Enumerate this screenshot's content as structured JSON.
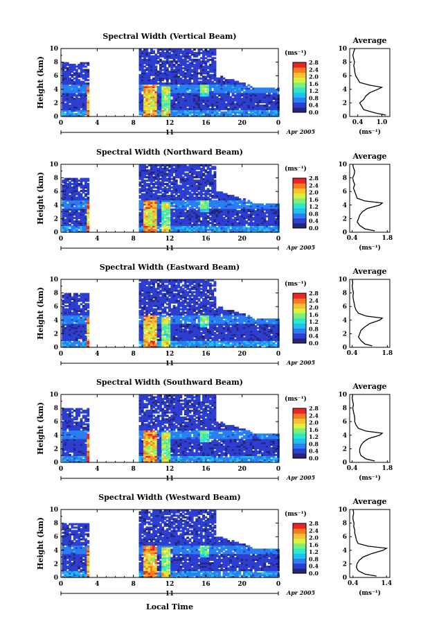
{
  "figure": {
    "xlabel": "Local Time",
    "date_label": "Apr 2005",
    "day_label": "11",
    "colorbar_unit": "(ms⁻¹)",
    "colorbar_ticks": [
      "0.0",
      "0.4",
      "0.8",
      "1.2",
      "1.6",
      "2.0",
      "2.4",
      "2.8"
    ],
    "colorbar_colors": [
      "#27257a",
      "#2c3fd1",
      "#2a7ff0",
      "#22c0f0",
      "#2ee8c8",
      "#7cf07a",
      "#d8f040",
      "#f8c030",
      "#f87a20",
      "#e8262a"
    ]
  },
  "chart_data": [
    {
      "type": "heatmap",
      "title": "Spectral Width (Vertical Beam)",
      "ylabel": "Height (km)",
      "xticks": [
        "0",
        "4",
        "8",
        "12",
        "16",
        "20",
        "0"
      ],
      "xlim": [
        0,
        24
      ],
      "yticks": [
        "0",
        "2",
        "4",
        "6",
        "8",
        "10"
      ],
      "ylim": [
        0,
        10
      ],
      "data_gap_hours": [
        3,
        8.5
      ],
      "profile": {
        "title": "Average",
        "xlabel": "(ms⁻¹)",
        "xticks": [
          "0.4",
          "1.0"
        ],
        "xlim": [
          0.2,
          1.2
        ],
        "yticks": [
          "0",
          "2",
          "4",
          "6",
          "8",
          "10"
        ],
        "heights": [
          0.2,
          0.5,
          1.0,
          1.5,
          2.0,
          2.5,
          3.0,
          3.5,
          4.0,
          4.3,
          4.6,
          5.0,
          5.5,
          6.0,
          6.5,
          7.0,
          7.5,
          8.0,
          8.5,
          9.0,
          9.5,
          10.0
        ],
        "values": [
          1.1,
          0.85,
          0.55,
          0.5,
          0.45,
          0.55,
          0.6,
          0.7,
          0.9,
          1.0,
          0.7,
          0.45,
          0.4,
          0.35,
          0.33,
          0.32,
          0.3,
          0.32,
          0.3,
          0.28,
          0.3,
          0.33
        ]
      }
    },
    {
      "type": "heatmap",
      "title": "Spectral Width (Northward Beam)",
      "ylabel": "Height (km)",
      "xticks": [
        "0",
        "4",
        "8",
        "12",
        "16",
        "20",
        "0"
      ],
      "xlim": [
        0,
        24
      ],
      "yticks": [
        "0",
        "2",
        "4",
        "6",
        "8",
        "10"
      ],
      "ylim": [
        0,
        10
      ],
      "data_gap_hours": [
        3,
        8.5
      ],
      "profile": {
        "title": "Average",
        "xlabel": "(ms⁻¹)",
        "xticks": [
          "0.4",
          "1.8"
        ],
        "xlim": [
          0.3,
          1.9
        ],
        "yticks": [
          "0",
          "2",
          "4",
          "6",
          "8",
          "10"
        ],
        "heights": [
          0.2,
          0.5,
          1.0,
          1.5,
          2.0,
          2.5,
          3.0,
          3.5,
          4.0,
          4.3,
          4.6,
          5.0,
          5.5,
          6.0,
          6.5,
          7.0,
          7.5,
          8.0,
          8.5,
          9.0,
          9.5,
          10.0
        ],
        "values": [
          1.3,
          0.9,
          0.7,
          0.6,
          0.65,
          0.7,
          0.8,
          1.0,
          1.5,
          1.6,
          0.9,
          0.6,
          0.55,
          0.5,
          0.45,
          0.5,
          0.45,
          0.42,
          0.48,
          0.5,
          0.45,
          0.42
        ]
      }
    },
    {
      "type": "heatmap",
      "title": "Spectral Width (Eastward Beam)",
      "ylabel": "Height (km)",
      "xticks": [
        "0",
        "4",
        "8",
        "12",
        "16",
        "20",
        "0"
      ],
      "xlim": [
        0,
        24
      ],
      "yticks": [
        "0",
        "2",
        "4",
        "6",
        "8",
        "10"
      ],
      "ylim": [
        0,
        10
      ],
      "data_gap_hours": [
        3,
        8.5
      ],
      "profile": {
        "title": "Average",
        "xlabel": "",
        "xticks": [
          "0.4",
          "1.8"
        ],
        "xlim": [
          0.3,
          1.9
        ],
        "yticks": [
          "0",
          "2",
          "4",
          "6",
          "8",
          "10"
        ],
        "heights": [
          0.2,
          0.5,
          1.0,
          1.5,
          2.0,
          2.5,
          3.0,
          3.5,
          4.0,
          4.3,
          4.6,
          5.0,
          5.5,
          6.0,
          6.5,
          7.0,
          7.5,
          8.0,
          8.5,
          9.0,
          9.5,
          10.0
        ],
        "values": [
          1.2,
          0.9,
          0.75,
          0.65,
          0.7,
          0.75,
          0.9,
          1.1,
          1.5,
          1.6,
          0.95,
          0.65,
          0.55,
          0.5,
          0.48,
          0.45,
          0.43,
          0.45,
          0.42,
          0.4,
          0.42,
          0.4
        ]
      }
    },
    {
      "type": "heatmap",
      "title": "Spectral Width (Southward Beam)",
      "ylabel": "Height (km)",
      "xticks": [
        "0",
        "4",
        "8",
        "12",
        "16",
        "20",
        "0"
      ],
      "xlim": [
        0,
        24
      ],
      "yticks": [
        "0",
        "2",
        "4",
        "6",
        "8",
        "10"
      ],
      "ylim": [
        0,
        10
      ],
      "data_gap_hours": [
        3,
        8.5
      ],
      "profile": {
        "title": "Average",
        "xlabel": "(ms⁻¹)",
        "xticks": [
          "0.4",
          "1.8"
        ],
        "xlim": [
          0.3,
          1.9
        ],
        "yticks": [
          "0",
          "2",
          "4",
          "6",
          "8",
          "10"
        ],
        "heights": [
          0.2,
          0.5,
          1.0,
          1.5,
          2.0,
          2.5,
          3.0,
          3.5,
          4.0,
          4.3,
          4.6,
          5.0,
          5.5,
          6.0,
          6.5,
          7.0,
          7.5,
          8.0,
          8.5,
          9.0,
          9.5,
          10.0
        ],
        "values": [
          1.3,
          0.95,
          0.75,
          0.7,
          0.7,
          0.75,
          0.85,
          1.05,
          1.5,
          1.6,
          0.95,
          0.65,
          0.55,
          0.5,
          0.5,
          0.48,
          0.45,
          0.42,
          0.45,
          0.42,
          0.4,
          0.42
        ]
      }
    },
    {
      "type": "heatmap",
      "title": "Spectral Width (Westward Beam)",
      "ylabel": "Height (km)",
      "xticks": [
        "0",
        "4",
        "8",
        "12",
        "16",
        "20",
        "0"
      ],
      "xlim": [
        0,
        24
      ],
      "yticks": [
        "0",
        "2",
        "4",
        "6",
        "8",
        "10"
      ],
      "ylim": [
        0,
        10
      ],
      "data_gap_hours": [
        3,
        8.5
      ],
      "profile": {
        "title": "Average",
        "xlabel": "(ms⁻¹)",
        "xticks": [
          "0.4",
          "1.4"
        ],
        "xlim": [
          0.3,
          1.5
        ],
        "yticks": [
          "0",
          "2",
          "4",
          "6",
          "8",
          "10"
        ],
        "heights": [
          0.2,
          0.5,
          1.0,
          1.5,
          2.0,
          2.5,
          3.0,
          3.5,
          4.0,
          4.3,
          4.6,
          5.0,
          5.5,
          6.0,
          6.5,
          7.0,
          7.5,
          8.0,
          8.5,
          9.0,
          9.5,
          10.0
        ],
        "values": [
          1.1,
          0.75,
          0.55,
          0.5,
          0.52,
          0.58,
          0.7,
          0.95,
          1.3,
          1.4,
          0.85,
          0.55,
          0.5,
          0.48,
          0.45,
          0.45,
          0.42,
          0.43,
          0.4,
          0.4,
          0.42,
          0.4
        ]
      }
    }
  ]
}
